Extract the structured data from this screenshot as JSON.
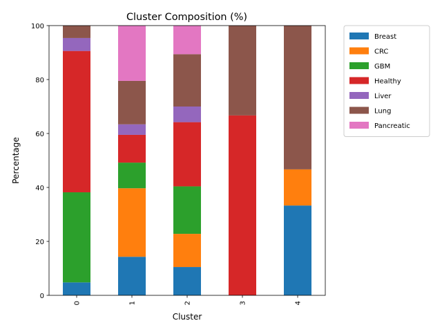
{
  "chart_data": {
    "type": "bar",
    "stacked": true,
    "title": "Cluster Composition (%)",
    "xlabel": "Cluster",
    "ylabel": "Percentage",
    "ylim": [
      0,
      100
    ],
    "yticks": [
      0,
      20,
      40,
      60,
      80,
      100
    ],
    "categories": [
      "0",
      "1",
      "2",
      "3",
      "4"
    ],
    "grid": false,
    "legend_position": "outside-upper-right",
    "series": [
      {
        "name": "Breast",
        "color": "#1f77b4",
        "values": [
          4.8,
          14.3,
          10.5,
          0,
          33.3
        ]
      },
      {
        "name": "CRC",
        "color": "#ff7f0e",
        "values": [
          0,
          25.4,
          12.3,
          0,
          13.4
        ]
      },
      {
        "name": "GBM",
        "color": "#2ca02c",
        "values": [
          33.4,
          9.5,
          17.6,
          0,
          0
        ]
      },
      {
        "name": "Healthy",
        "color": "#d62728",
        "values": [
          52.4,
          10.3,
          23.8,
          66.7,
          0
        ]
      },
      {
        "name": "Liver",
        "color": "#9467bd",
        "values": [
          4.8,
          3.9,
          5.8,
          0,
          0
        ]
      },
      {
        "name": "Lung",
        "color": "#8c564b",
        "values": [
          4.6,
          16.1,
          19.4,
          33.3,
          53.3
        ]
      },
      {
        "name": "Pancreatic",
        "color": "#e377c2",
        "values": [
          0,
          20.5,
          10.6,
          0,
          0
        ]
      }
    ]
  }
}
